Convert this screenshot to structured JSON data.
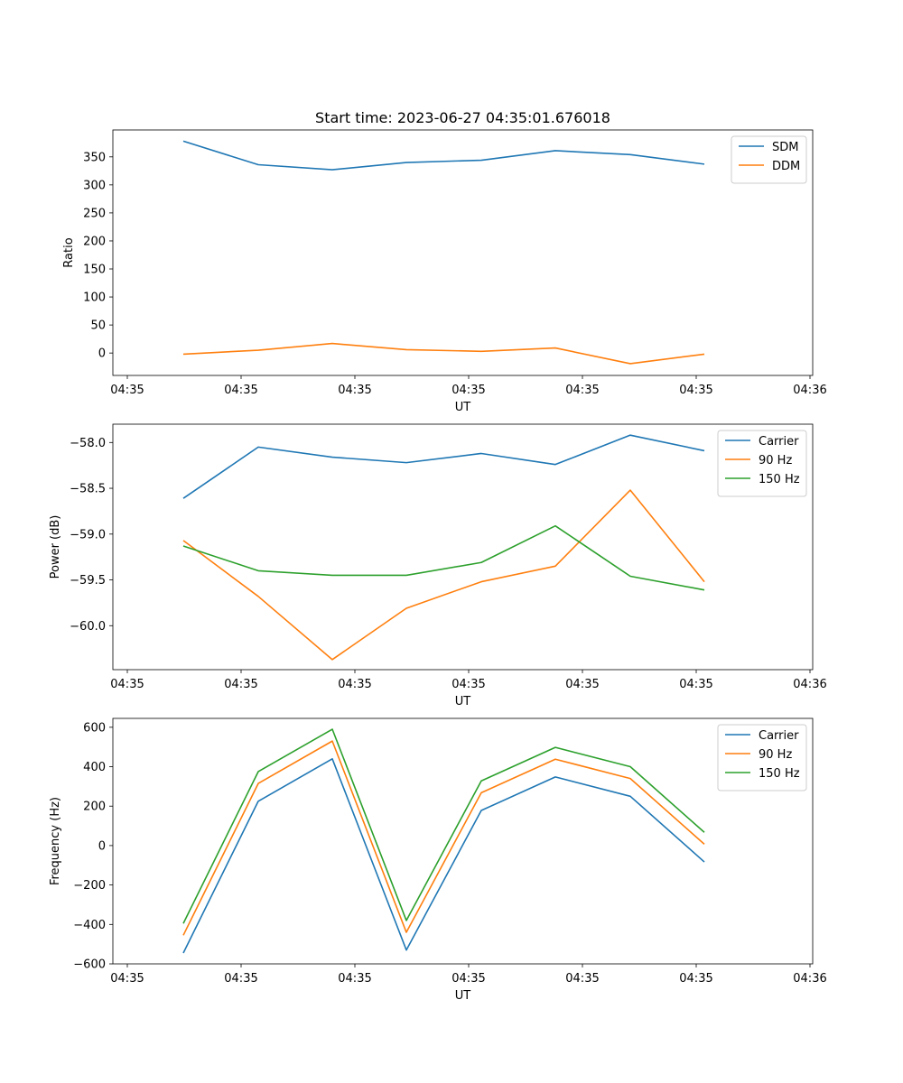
{
  "colors": {
    "blue": "#1f77b4",
    "orange": "#ff7f0e",
    "green": "#2ca02c"
  },
  "chart_data": [
    {
      "type": "line",
      "title": "Start time: 2023-06-27 04:35:01.676018",
      "xlabel": "UT",
      "ylabel": "Ratio",
      "xtick_labels": [
        "04:35",
        "04:35",
        "04:35",
        "04:35",
        "04:35",
        "04:35",
        "04:36"
      ],
      "ylim": [
        -40,
        398
      ],
      "yticks": [
        0,
        50,
        100,
        150,
        200,
        250,
        300,
        350
      ],
      "ytick_labels": [
        "0",
        "50",
        "100",
        "150",
        "200",
        "250",
        "300",
        "350"
      ],
      "legend": "top-right",
      "series": [
        {
          "name": "SDM",
          "color": "#1f77b4",
          "values": [
            378,
            336,
            327,
            340,
            344,
            361,
            354,
            337
          ]
        },
        {
          "name": "DDM",
          "color": "#ff7f0e",
          "values": [
            -2,
            5,
            17,
            6,
            3,
            9,
            -19,
            -2
          ]
        }
      ]
    },
    {
      "type": "line",
      "title": "",
      "xlabel": "UT",
      "ylabel": "Power (dB)",
      "xtick_labels": [
        "04:35",
        "04:35",
        "04:35",
        "04:35",
        "04:35",
        "04:35",
        "04:36"
      ],
      "ylim": [
        -60.48,
        -57.8
      ],
      "yticks": [
        -60.0,
        -59.5,
        -59.0,
        -58.5,
        -58.0
      ],
      "ytick_labels": [
        "−60.0",
        "−59.5",
        "−59.0",
        "−58.5",
        "−58.0"
      ],
      "legend": "top-right",
      "series": [
        {
          "name": "Carrier",
          "color": "#1f77b4",
          "values": [
            -58.61,
            -58.05,
            -58.16,
            -58.22,
            -58.12,
            -58.24,
            -57.92,
            -58.09
          ]
        },
        {
          "name": "90 Hz",
          "color": "#ff7f0e",
          "values": [
            -59.07,
            -59.68,
            -60.37,
            -59.81,
            -59.52,
            -59.35,
            -58.52,
            -59.52
          ]
        },
        {
          "name": "150 Hz",
          "color": "#2ca02c",
          "values": [
            -59.13,
            -59.4,
            -59.45,
            -59.45,
            -59.31,
            -58.91,
            -59.46,
            -59.61
          ]
        }
      ]
    },
    {
      "type": "line",
      "title": "",
      "xlabel": "UT",
      "ylabel": "Frequency (Hz)",
      "xtick_labels": [
        "04:35",
        "04:35",
        "04:35",
        "04:35",
        "04:35",
        "04:35",
        "04:36"
      ],
      "ylim": [
        -600,
        645
      ],
      "yticks": [
        -600,
        -400,
        -200,
        0,
        200,
        400,
        600
      ],
      "ytick_labels": [
        "−600",
        "−400",
        "−200",
        "0",
        "200",
        "400",
        "600"
      ],
      "legend": "top-right",
      "series": [
        {
          "name": "Carrier",
          "color": "#1f77b4",
          "values": [
            -545,
            225,
            440,
            -530,
            178,
            348,
            250,
            -83
          ]
        },
        {
          "name": "90 Hz",
          "color": "#ff7f0e",
          "values": [
            -455,
            315,
            530,
            -440,
            268,
            438,
            340,
            7
          ]
        },
        {
          "name": "150 Hz",
          "color": "#2ca02c",
          "values": [
            -395,
            375,
            590,
            -380,
            328,
            498,
            400,
            67
          ]
        }
      ]
    }
  ]
}
